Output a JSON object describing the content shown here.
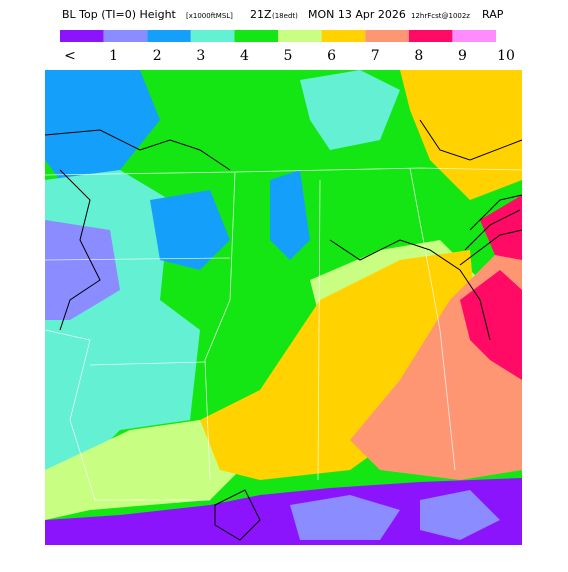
{
  "header": {
    "title": "BL Top (TI=0) Height",
    "units": "[x1000ftMSL]",
    "valid_time": "21Z",
    "local_time": "(18edt)",
    "date": "MON 13 Apr 2026",
    "forecast": "12hrFcst@1002z",
    "model": "RAP"
  },
  "legend": {
    "labels": [
      "<",
      "1",
      "2",
      "3",
      "4",
      "5",
      "6",
      "7",
      "8",
      "9",
      "10"
    ],
    "colors": [
      "#8c14fc",
      "#8a8cff",
      "#14a0fa",
      "#64f0d2",
      "#14e614",
      "#c8ff82",
      "#ffd200",
      "#ff9673",
      "#ff0a64",
      "#ff8cff"
    ]
  }
}
